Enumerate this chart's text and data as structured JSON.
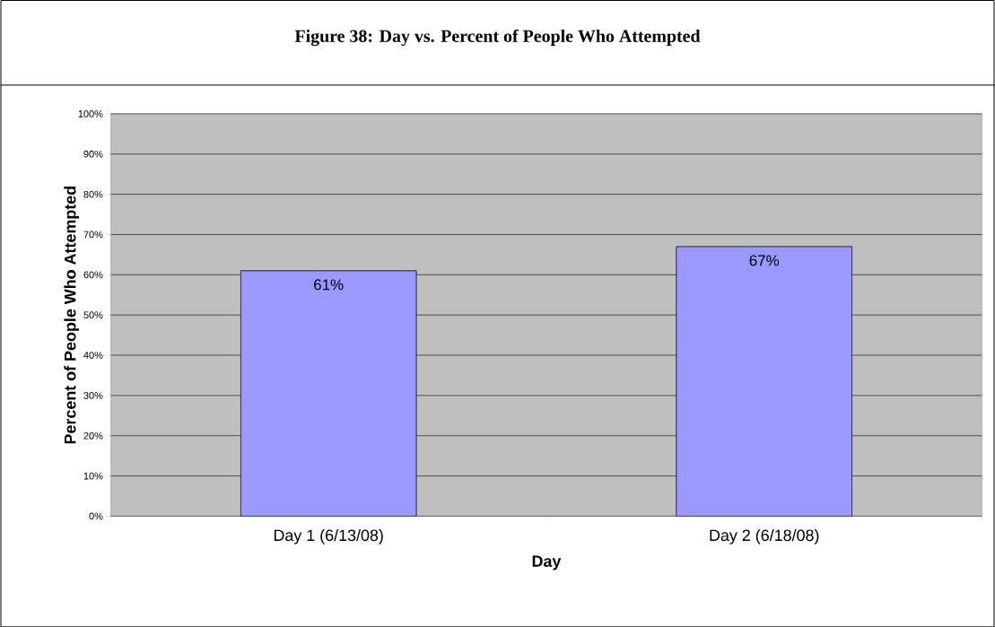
{
  "chart_data": {
    "type": "bar",
    "title": "Figure 38:  Day vs. Percent of People Who Attempted",
    "xlabel": "Day",
    "ylabel": "Percent of People Who Attempted",
    "categories": [
      "Day 1 (6/13/08)",
      "Day 2 (6/18/08)"
    ],
    "values": [
      61,
      67
    ],
    "value_labels": [
      "61%",
      "67%"
    ],
    "color": "#9999ff",
    "ylim": [
      0,
      100
    ],
    "yticks": [
      {
        "value": 0,
        "label": "0%"
      },
      {
        "value": 10,
        "label": "10%"
      },
      {
        "value": 20,
        "label": "20%"
      },
      {
        "value": 30,
        "label": "30%"
      },
      {
        "value": 40,
        "label": "40%"
      },
      {
        "value": 50,
        "label": "50%"
      },
      {
        "value": 60,
        "label": "60%"
      },
      {
        "value": 70,
        "label": "70%"
      },
      {
        "value": 80,
        "label": "80%"
      },
      {
        "value": 90,
        "label": "90%"
      },
      {
        "value": 100,
        "label": "100%"
      }
    ],
    "grid": "y"
  }
}
